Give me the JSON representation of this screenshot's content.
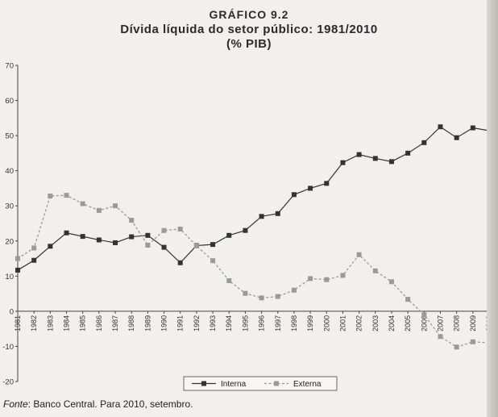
{
  "header": {
    "figure_label": "GRÁFICO 9.2",
    "title": "Dívida líquida do setor público: 1981/2010",
    "unit": "(% PIB)"
  },
  "footer": {
    "source_label": "Fonte",
    "source_text": ": Banco Central. Para 2010, setembro."
  },
  "chart_data": {
    "type": "line",
    "x": [
      "1981",
      "1982",
      "1983",
      "1984",
      "1985",
      "1986",
      "1987",
      "1988",
      "1989",
      "1990",
      "1991",
      "1992",
      "1993",
      "1994",
      "1995",
      "1996",
      "1997",
      "1998",
      "1999",
      "2000",
      "2001",
      "2002",
      "2003",
      "2004",
      "2005",
      "2006",
      "2007",
      "2008",
      "2009",
      "2010"
    ],
    "series": [
      {
        "name": "Interna",
        "style": "solid",
        "color": "#333333",
        "marker": "square",
        "values": [
          11.7,
          14.5,
          18.5,
          22.3,
          21.3,
          20.3,
          19.5,
          21.2,
          21.6,
          18.2,
          13.8,
          18.7,
          19.0,
          21.6,
          23.0,
          27.0,
          27.8,
          33.2,
          35.0,
          36.4,
          42.3,
          44.6,
          43.5,
          42.6,
          45.0,
          48.0,
          52.5,
          49.4,
          52.2,
          51.4
        ]
      },
      {
        "name": "Externa",
        "style": "dashed",
        "color": "#9a9a9a",
        "marker": "square",
        "values": [
          15.0,
          18.0,
          32.8,
          33.0,
          30.6,
          28.7,
          30.0,
          25.9,
          18.8,
          23.0,
          23.4,
          18.6,
          14.4,
          8.7,
          5.1,
          3.8,
          4.2,
          6.0,
          9.3,
          9.0,
          10.2,
          16.1,
          11.5,
          8.4,
          3.4,
          -1.0,
          -7.2,
          -10.2,
          -8.7,
          -9.0
        ]
      }
    ],
    "ylim": [
      -20,
      70
    ],
    "yticks": [
      -20,
      -10,
      0,
      10,
      20,
      30,
      40,
      50,
      60,
      70
    ],
    "grid": false,
    "legend_position": "bottom-center"
  }
}
